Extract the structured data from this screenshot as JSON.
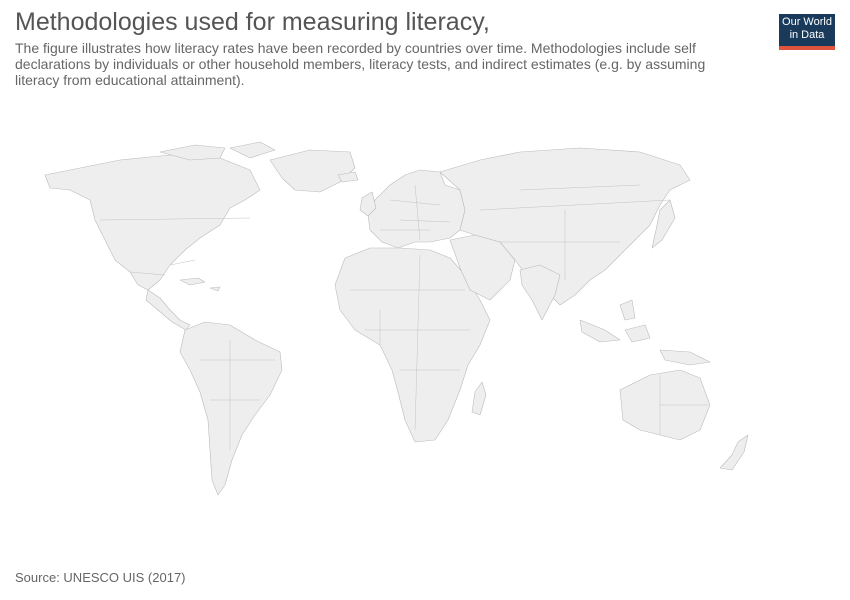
{
  "header": {
    "title": "Methodologies used for measuring literacy,",
    "subtitle": "The figure illustrates how literacy rates have been recorded by countries over time. Methodologies include self declarations by individuals or other household members, literacy tests, and indirect estimates (e.g. by assuming literacy from educational attainment)."
  },
  "logo": {
    "line1": "Our World",
    "line2": "in Data",
    "colors": {
      "background": "#1a3a5c",
      "accent": "#e0543d"
    }
  },
  "map": {
    "fill_color": "#eeeeee",
    "border_color": "#bbbbbb"
  },
  "footer": {
    "source": "Source: UNESCO UIS (2017)"
  }
}
